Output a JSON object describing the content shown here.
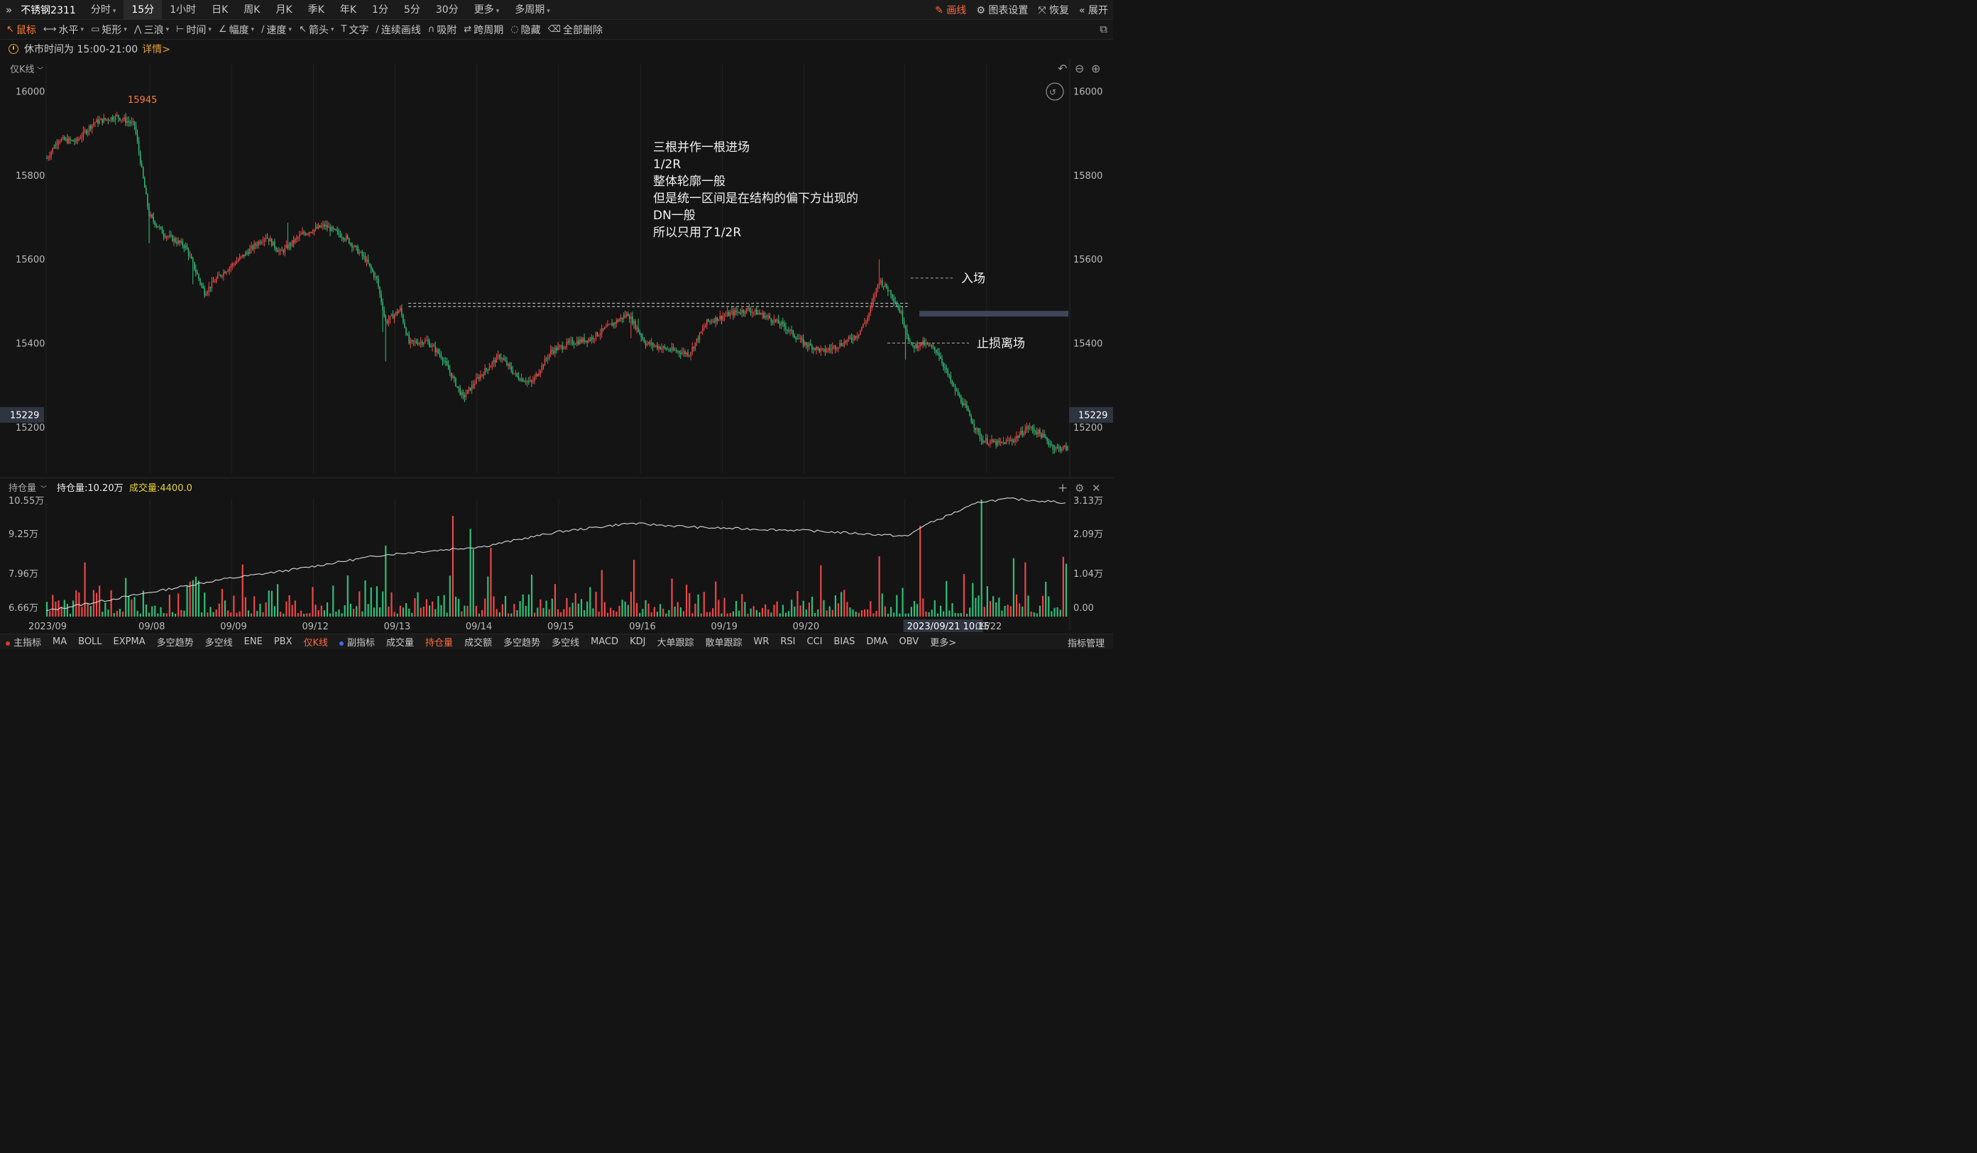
{
  "topbar": {
    "symbol": "不锈钢2311",
    "periods": [
      {
        "label": "分时",
        "caret": true
      },
      {
        "label": "15分",
        "active": true
      },
      {
        "label": "1小时"
      },
      {
        "label": "日K"
      },
      {
        "label": "周K"
      },
      {
        "label": "月K"
      },
      {
        "label": "季K"
      },
      {
        "label": "年K"
      },
      {
        "label": "1分"
      },
      {
        "label": "5分"
      },
      {
        "label": "30分"
      },
      {
        "label": "更多",
        "caret": true
      },
      {
        "label": "多周期",
        "caret": true
      }
    ],
    "right": {
      "draw": "画线",
      "settings": "图表设置",
      "restore": "恢复",
      "expand": "展开"
    }
  },
  "toolbar": {
    "tools": [
      {
        "label": "鼠标",
        "icon": "↖",
        "name": "cursor-tool",
        "active": true
      },
      {
        "label": "水平",
        "icon": "⟷",
        "name": "horizontal-tool",
        "caret": true
      },
      {
        "label": "矩形",
        "icon": "▭",
        "name": "rectangle-tool",
        "caret": true
      },
      {
        "label": "三浪",
        "icon": "⋀",
        "name": "three-wave-tool",
        "caret": true
      },
      {
        "label": "时间",
        "icon": "⊢",
        "name": "time-tool",
        "caret": true
      },
      {
        "label": "幅度",
        "icon": "∠",
        "name": "amplitude-tool",
        "caret": true
      },
      {
        "label": "速度",
        "icon": "∕",
        "name": "speed-tool",
        "caret": true
      },
      {
        "label": "箭头",
        "icon": "↖",
        "name": "arrow-tool",
        "caret": true
      },
      {
        "label": "文字",
        "icon": "T",
        "name": "text-tool"
      },
      {
        "label": "连续画线",
        "icon": "∕",
        "name": "continuous-line-tool"
      },
      {
        "label": "吸附",
        "icon": "∩",
        "name": "magnet-tool"
      },
      {
        "label": "跨周期",
        "icon": "⇄",
        "name": "cross-period-tool"
      },
      {
        "label": "隐藏",
        "icon": "◌",
        "name": "hide-tool"
      },
      {
        "label": "全部删除",
        "icon": "⌫",
        "name": "delete-all-tool"
      }
    ]
  },
  "notice": {
    "text": "休市时间为 15:00-21:00",
    "link": "详情>"
  },
  "chart_data": {
    "type": "candlestick",
    "mode_label": "仅K线",
    "yticks": [
      16000,
      15800,
      15600,
      15400,
      15200
    ],
    "ylim": [
      15090,
      16065
    ],
    "current_price": "15229",
    "high_label": "15945",
    "high_value": 15945,
    "x_dates": [
      "2023/09",
      "09/08",
      "09/09",
      "09/12",
      "09/13",
      "09/14",
      "09/15",
      "09/16",
      "09/19",
      "09/20",
      "2023/09/21 10:15",
      "09/22"
    ],
    "annotation_lines": [
      "三根并作一根进场",
      "1/2R",
      "整体轮廓一般",
      "但是统一区间是在结构的偏下方出现的",
      "DN一般",
      "所以只用了1/2R"
    ],
    "entry_label": "入场",
    "entry_price": 15555,
    "stop_label": "止损离场",
    "stop_price": 15400,
    "range_levels": [
      15495,
      15487
    ],
    "path_keypoints": [
      [
        0,
        15840
      ],
      [
        8,
        15885
      ],
      [
        20,
        15880
      ],
      [
        32,
        15925
      ],
      [
        48,
        15940
      ],
      [
        60,
        15920
      ],
      [
        70,
        15705
      ],
      [
        80,
        15660
      ],
      [
        95,
        15630
      ],
      [
        108,
        15520
      ],
      [
        118,
        15560
      ],
      [
        135,
        15610
      ],
      [
        150,
        15655
      ],
      [
        160,
        15615
      ],
      [
        175,
        15660
      ],
      [
        190,
        15680
      ],
      [
        205,
        15650
      ],
      [
        218,
        15600
      ],
      [
        226,
        15550
      ],
      [
        232,
        15450
      ],
      [
        242,
        15480
      ],
      [
        248,
        15400
      ],
      [
        260,
        15405
      ],
      [
        270,
        15370
      ],
      [
        285,
        15270
      ],
      [
        296,
        15320
      ],
      [
        310,
        15370
      ],
      [
        322,
        15320
      ],
      [
        332,
        15305
      ],
      [
        345,
        15380
      ],
      [
        358,
        15400
      ],
      [
        372,
        15410
      ],
      [
        385,
        15440
      ],
      [
        398,
        15470
      ],
      [
        410,
        15400
      ],
      [
        425,
        15385
      ],
      [
        440,
        15375
      ],
      [
        452,
        15450
      ],
      [
        468,
        15470
      ],
      [
        480,
        15480
      ],
      [
        492,
        15465
      ],
      [
        505,
        15440
      ],
      [
        518,
        15400
      ],
      [
        532,
        15380
      ],
      [
        545,
        15400
      ],
      [
        555,
        15420
      ],
      [
        562,
        15460
      ],
      [
        570,
        15550
      ],
      [
        578,
        15520
      ],
      [
        585,
        15470
      ],
      [
        592,
        15390
      ],
      [
        600,
        15400
      ],
      [
        610,
        15380
      ],
      [
        620,
        15300
      ],
      [
        630,
        15240
      ],
      [
        640,
        15170
      ],
      [
        652,
        15160
      ],
      [
        662,
        15170
      ],
      [
        672,
        15200
      ],
      [
        680,
        15185
      ],
      [
        690,
        15150
      ]
    ],
    "open_interest_label": "持仓量",
    "open_interest_value": "持仓量:10.20万",
    "volume_value": "成交量:4400.0",
    "oi_ticks": [
      "10.55万",
      "9.25万",
      "7.96万",
      "6.66万"
    ],
    "vol_ticks": [
      "3.13万",
      "2.09万",
      "1.04万",
      "0.00"
    ]
  },
  "bottombar": {
    "items": [
      {
        "label": "主指标",
        "dot": "#e03535",
        "name": "main-indicator-tab"
      },
      {
        "label": "MA"
      },
      {
        "label": "BOLL"
      },
      {
        "label": "EXPMA"
      },
      {
        "label": "多空趋势"
      },
      {
        "label": "多空线"
      },
      {
        "label": "ENE"
      },
      {
        "label": "PBX"
      },
      {
        "label": "仅K线",
        "active": true
      },
      {
        "label": "副指标",
        "dot": "#3a6cf0",
        "name": "sub-indicator-tab"
      },
      {
        "label": "成交量"
      },
      {
        "label": "持仓量",
        "active": true
      },
      {
        "label": "成交额"
      },
      {
        "label": "多空趋势"
      },
      {
        "label": "多空线"
      },
      {
        "label": "MACD"
      },
      {
        "label": "KDJ"
      },
      {
        "label": "大单跟踪"
      },
      {
        "label": "散单跟踪"
      },
      {
        "label": "WR"
      },
      {
        "label": "RSI"
      },
      {
        "label": "CCI"
      },
      {
        "label": "BIAS"
      },
      {
        "label": "DMA"
      },
      {
        "label": "OBV"
      },
      {
        "label": "更多>"
      }
    ],
    "manage": "指标管理"
  },
  "colors": {
    "up": "#f04848",
    "down": "#32c07a",
    "accent": "#ff6a3a",
    "bg": "#141414",
    "grid": "#222222"
  }
}
